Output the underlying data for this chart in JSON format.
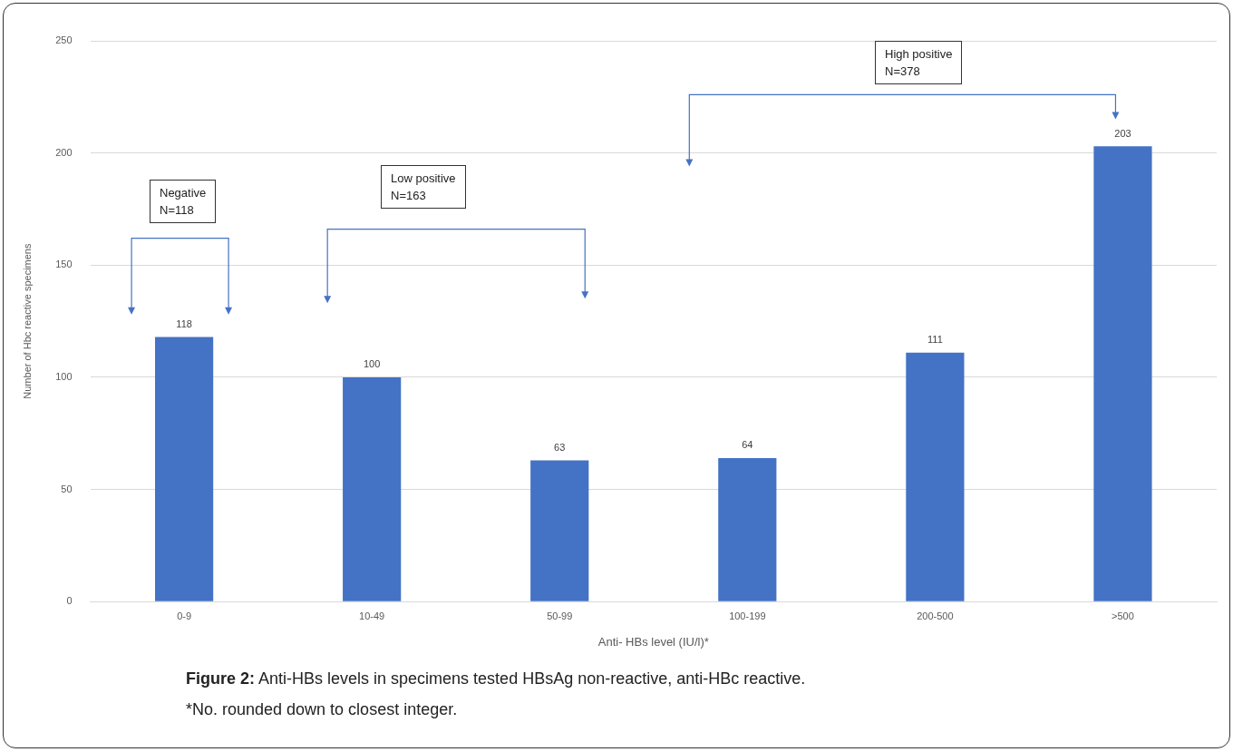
{
  "chart_data": {
    "type": "bar",
    "title": "Figure 2: Anti-HBs levels in specimens tested HBsAg non-reactive, anti-HBc reactive.",
    "xlabel": "Anti- HBs level (IU/l)*",
    "ylabel": "Number of Hbc reactive specimens",
    "categories": [
      "0-9",
      "10-49",
      "50-99",
      "100-199",
      "200-500",
      ">500"
    ],
    "values": [
      118,
      100,
      63,
      64,
      111,
      203
    ],
    "color": "#4472c4",
    "data_labels": true,
    "ylim": [
      0,
      250
    ],
    "yticks": [
      0,
      50,
      100,
      150,
      200,
      250
    ],
    "grid": "y",
    "legend": false,
    "annotations": [
      "Negative\nN=118",
      "Low positive\nN=163",
      "High positive\nN=378",
      "*No. rounded down to closest integer."
    ]
  }
}
